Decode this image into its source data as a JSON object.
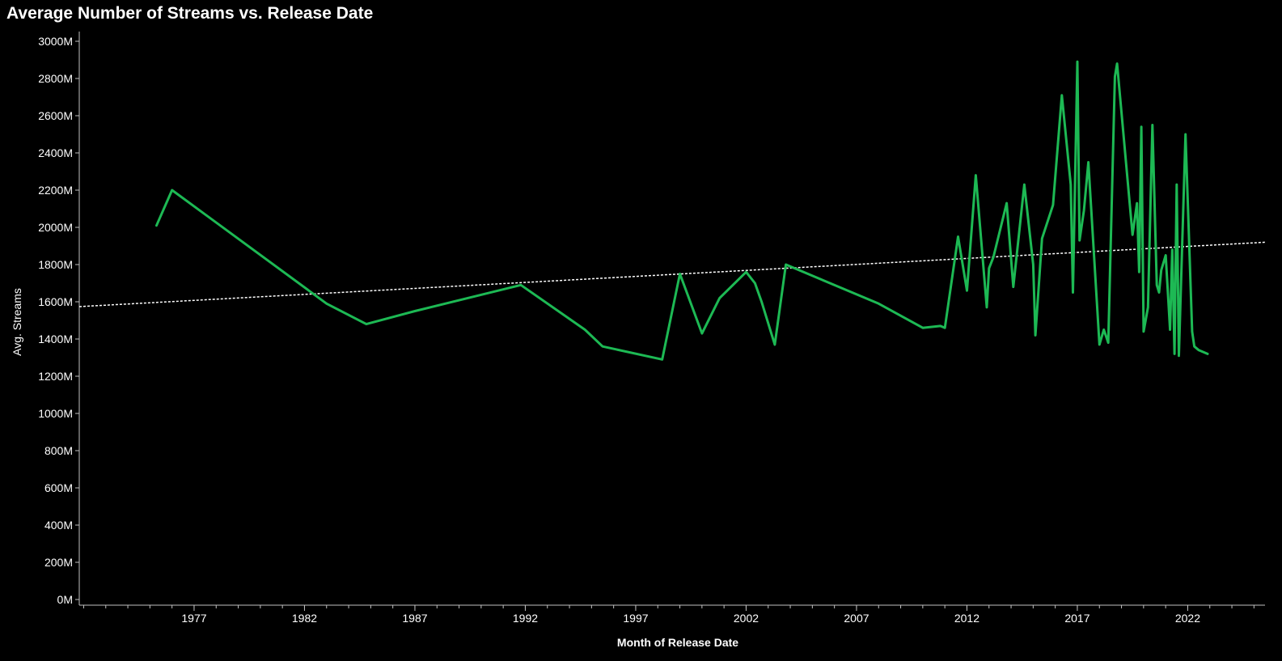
{
  "chart_data": {
    "type": "line",
    "title": "Average Number of Streams vs. Release Date",
    "xlabel": "Month of Release Date",
    "ylabel": "Avg. Streams",
    "xlim": [
      1971.8,
      2025.5
    ],
    "ylim": [
      0,
      3000
    ],
    "x_ticks": [
      1977,
      1982,
      1987,
      1992,
      1997,
      2002,
      2007,
      2012,
      2017,
      2022
    ],
    "y_ticks": [
      0,
      200,
      400,
      600,
      800,
      1000,
      1200,
      1400,
      1600,
      1800,
      2000,
      2200,
      2400,
      2600,
      2800,
      3000
    ],
    "y_tick_labels": [
      "0M",
      "200M",
      "400M",
      "600M",
      "800M",
      "1000M",
      "1200M",
      "1400M",
      "1600M",
      "1800M",
      "2000M",
      "2200M",
      "2400M",
      "2600M",
      "2800M",
      "3000M"
    ],
    "grid": false,
    "series": [
      {
        "color": "#1DB954",
        "x": [
          1975.3,
          1976.0,
          1983.0,
          1984.8,
          1987.0,
          1991.8,
          1994.7,
          1995.5,
          1998.2,
          1999.0,
          2000.0,
          2000.8,
          2002.0,
          2002.4,
          2002.7,
          2003.3,
          2003.8,
          2008.0,
          2010.0,
          2010.8,
          2011.0,
          2011.6,
          2012.0,
          2012.4,
          2012.9,
          2013.0,
          2013.2,
          2013.8,
          2014.1,
          2014.6,
          2015.0,
          2015.1,
          2015.4,
          2015.9,
          2016.3,
          2016.7,
          2016.8,
          2017.0,
          2017.1,
          2017.3,
          2017.5,
          2018.0,
          2018.2,
          2018.4,
          2018.7,
          2018.8,
          2019.5,
          2019.7,
          2019.8,
          2019.9,
          2020.0,
          2020.2,
          2020.4,
          2020.6,
          2020.7,
          2020.8,
          2021.0,
          2021.2,
          2021.3,
          2021.4,
          2021.5,
          2021.6,
          2021.7,
          2021.9,
          2022.2,
          2022.3,
          2022.5,
          2022.9
        ],
        "values": [
          2010,
          2200,
          1590,
          1480,
          1550,
          1690,
          1450,
          1360,
          1290,
          1750,
          1430,
          1620,
          1760,
          1700,
          1600,
          1370,
          1800,
          1590,
          1460,
          1470,
          1460,
          1950,
          1660,
          2280,
          1570,
          1780,
          1840,
          2130,
          1680,
          2230,
          1800,
          1420,
          1940,
          2120,
          2710,
          2230,
          1650,
          2890,
          1930,
          2090,
          2350,
          1370,
          1450,
          1380,
          2810,
          2880,
          1960,
          2130,
          1760,
          2540,
          1440,
          1570,
          2550,
          1690,
          1650,
          1770,
          1850,
          1450,
          1880,
          1320,
          2230,
          1310,
          1720,
          2500,
          1440,
          1360,
          1340,
          1320
        ]
      }
    ],
    "trend_line": {
      "color": "#ffffff",
      "style": "dotted",
      "x": [
        1971.8,
        2025.5
      ],
      "values": [
        1574,
        1920
      ]
    }
  }
}
